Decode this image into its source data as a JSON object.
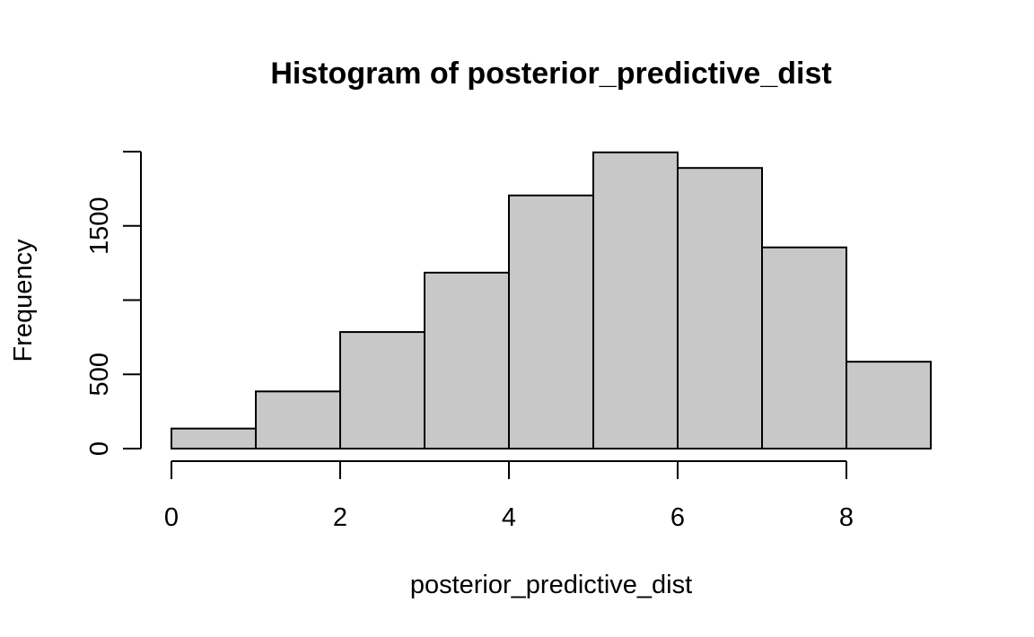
{
  "chart_data": {
    "type": "bar",
    "title": "Histogram of posterior_predictive_dist",
    "xlabel": "posterior_predictive_dist",
    "ylabel": "Frequency",
    "bins": [
      {
        "x0": 0,
        "x1": 1,
        "count": 135
      },
      {
        "x0": 1,
        "x1": 2,
        "count": 385
      },
      {
        "x0": 2,
        "x1": 3,
        "count": 785
      },
      {
        "x0": 3,
        "x1": 4,
        "count": 1185
      },
      {
        "x0": 4,
        "x1": 5,
        "count": 1705
      },
      {
        "x0": 5,
        "x1": 6,
        "count": 1995
      },
      {
        "x0": 6,
        "x1": 7,
        "count": 1890
      },
      {
        "x0": 7,
        "x1": 8,
        "count": 1355
      },
      {
        "x0": 8,
        "x1": 9,
        "count": 585
      }
    ],
    "xlim": [
      0,
      9
    ],
    "ylim": [
      0,
      2000
    ],
    "x_ticks": [
      0,
      2,
      4,
      6,
      8
    ],
    "x_tick_labels": [
      "0",
      "2",
      "4",
      "6",
      "8"
    ],
    "y_ticks": [
      0,
      500,
      1000,
      1500,
      2000
    ],
    "y_tick_labels": [
      "0",
      "500",
      "",
      "1500",
      ""
    ],
    "bar_fill": "#c8c8c8",
    "bar_stroke": "#000000",
    "grid": false,
    "legend": "none"
  }
}
